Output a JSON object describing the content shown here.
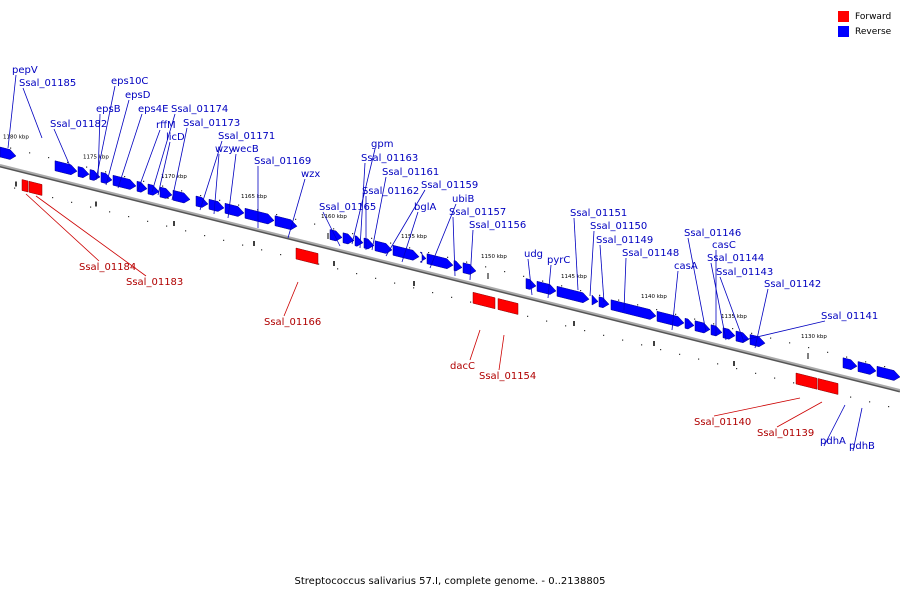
{
  "caption": "Streptococcus salivarius 57.I, complete genome. - 0..2138805",
  "legend": [
    {
      "label": "Forward",
      "color": "#ff0000"
    },
    {
      "label": "Reverse",
      "color": "#0000ff"
    }
  ],
  "colors": {
    "forward": "#ff0000",
    "reverse": "#0000ff",
    "forward_text": "#b00000",
    "reverse_text": "#0000c0",
    "backbone": "#888888"
  },
  "ticks": [
    "1180 kbp",
    "1175 kbp",
    "1170 kbp",
    "1165 kbp",
    "1160 kbp",
    "1155 kbp",
    "1150 kbp",
    "1145 kbp",
    "1140 kbp",
    "1135 kbp",
    "1130 kbp"
  ],
  "reverse_labels": [
    "pepV",
    "Ssal_01185",
    "Ssal_01182",
    "eps10C",
    "epsD",
    "epsB",
    "eps4E",
    "Ssal_01174",
    "rffM",
    "Ssal_01173",
    "licD",
    "Ssal_01171",
    "wzy",
    "wecB",
    "Ssal_01169",
    "wzx",
    "gpm",
    "Ssal_01163",
    "Ssal_01161",
    "Ssal_01162",
    "Ssal_01165",
    "Ssal_01159",
    "bglA",
    "ubiB",
    "Ssal_01157",
    "Ssal_01156",
    "Ssal_01151",
    "Ssal_01150",
    "udg",
    "pyrC",
    "Ssal_01149",
    "Ssal_01148",
    "Ssal_01146",
    "casC",
    "casA",
    "Ssal_01144",
    "Ssal_01143",
    "Ssal_01142",
    "Ssal_01141",
    "pdhA",
    "pdhB"
  ],
  "forward_labels": [
    "Ssal_01184",
    "Ssal_01183",
    "Ssal_01166",
    "dacC",
    "Ssal_01154",
    "Ssal_01140",
    "Ssal_01139"
  ]
}
